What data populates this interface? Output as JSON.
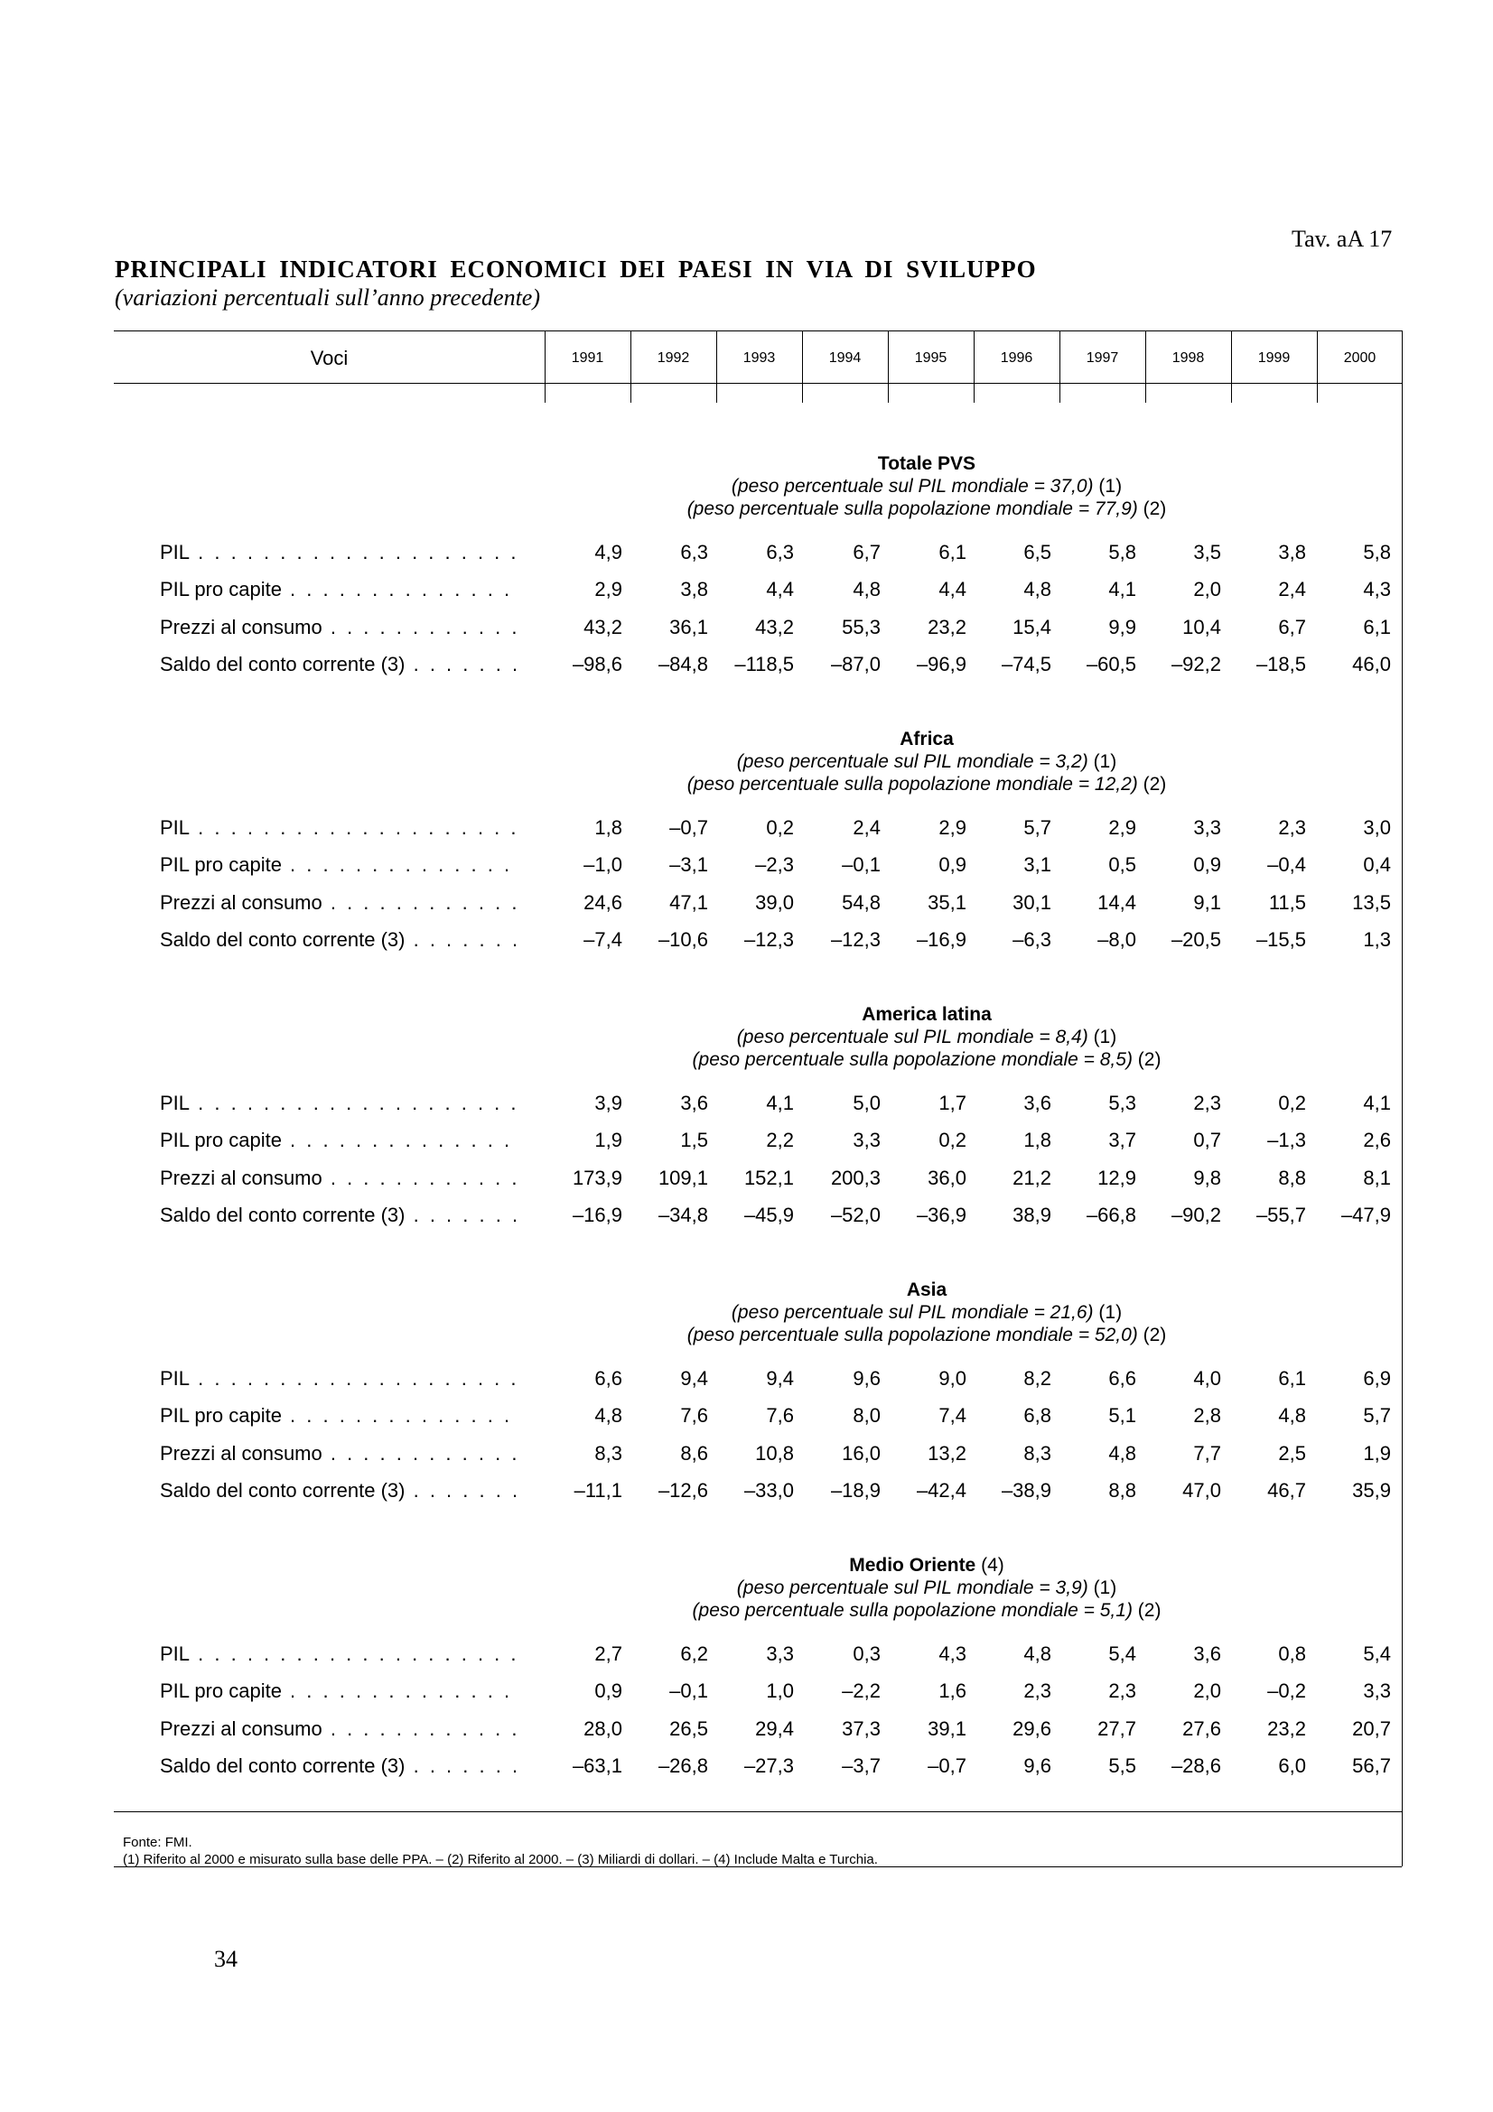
{
  "page": {
    "table_ref": "Tav. aA 17",
    "title": "PRINCIPALI INDICATORI ECONOMICI DEI PAESI IN VIA DI SVILUPPO",
    "subtitle": "(variazioni percentuali sull’anno precedente)",
    "page_number": "34"
  },
  "table": {
    "header_label": "Voci",
    "years": [
      "1991",
      "1992",
      "1993",
      "1994",
      "1995",
      "1996",
      "1997",
      "1998",
      "1999",
      "2000"
    ],
    "row_labels": [
      "PIL",
      "PIL pro capite",
      "Prezzi al consumo",
      "Saldo del conto corrente (3)"
    ],
    "sections": [
      {
        "name": "Totale PVS",
        "name_note": "",
        "weight_gdp_text": "(peso percentuale sul PIL mondiale = 37,0)",
        "weight_gdp_note": "(1)",
        "weight_pop_text": "(peso percentuale sulla popolazione mondiale = 77,9)",
        "weight_pop_note": "(2)",
        "rows": [
          [
            "4,9",
            "6,3",
            "6,3",
            "6,7",
            "6,1",
            "6,5",
            "5,8",
            "3,5",
            "3,8",
            "5,8"
          ],
          [
            "2,9",
            "3,8",
            "4,4",
            "4,8",
            "4,4",
            "4,8",
            "4,1",
            "2,0",
            "2,4",
            "4,3"
          ],
          [
            "43,2",
            "36,1",
            "43,2",
            "55,3",
            "23,2",
            "15,4",
            "9,9",
            "10,4",
            "6,7",
            "6,1"
          ],
          [
            "–98,6",
            "–84,8",
            "–118,5",
            "–87,0",
            "–96,9",
            "–74,5",
            "–60,5",
            "–92,2",
            "–18,5",
            "46,0"
          ]
        ]
      },
      {
        "name": "Africa",
        "name_note": "",
        "weight_gdp_text": "(peso percentuale sul PIL mondiale = 3,2)",
        "weight_gdp_note": "(1)",
        "weight_pop_text": "(peso percentuale sulla popolazione mondiale = 12,2)",
        "weight_pop_note": "(2)",
        "rows": [
          [
            "1,8",
            "–0,7",
            "0,2",
            "2,4",
            "2,9",
            "5,7",
            "2,9",
            "3,3",
            "2,3",
            "3,0"
          ],
          [
            "–1,0",
            "–3,1",
            "–2,3",
            "–0,1",
            "0,9",
            "3,1",
            "0,5",
            "0,9",
            "–0,4",
            "0,4"
          ],
          [
            "24,6",
            "47,1",
            "39,0",
            "54,8",
            "35,1",
            "30,1",
            "14,4",
            "9,1",
            "11,5",
            "13,5"
          ],
          [
            "–7,4",
            "–10,6",
            "–12,3",
            "–12,3",
            "–16,9",
            "–6,3",
            "–8,0",
            "–20,5",
            "–15,5",
            "1,3"
          ]
        ]
      },
      {
        "name": "America latina",
        "name_note": "",
        "weight_gdp_text": "(peso percentuale sul PIL mondiale = 8,4)",
        "weight_gdp_note": "(1)",
        "weight_pop_text": "(peso percentuale sulla popolazione mondiale = 8,5)",
        "weight_pop_note": "(2)",
        "rows": [
          [
            "3,9",
            "3,6",
            "4,1",
            "5,0",
            "1,7",
            "3,6",
            "5,3",
            "2,3",
            "0,2",
            "4,1"
          ],
          [
            "1,9",
            "1,5",
            "2,2",
            "3,3",
            "0,2",
            "1,8",
            "3,7",
            "0,7",
            "–1,3",
            "2,6"
          ],
          [
            "173,9",
            "109,1",
            "152,1",
            "200,3",
            "36,0",
            "21,2",
            "12,9",
            "9,8",
            "8,8",
            "8,1"
          ],
          [
            "–16,9",
            "–34,8",
            "–45,9",
            "–52,0",
            "–36,9",
            "38,9",
            "–66,8",
            "–90,2",
            "–55,7",
            "–47,9"
          ]
        ]
      },
      {
        "name": "Asia",
        "name_note": "",
        "weight_gdp_text": "(peso percentuale sul PIL mondiale = 21,6)",
        "weight_gdp_note": "(1)",
        "weight_pop_text": "(peso percentuale sulla popolazione mondiale = 52,0)",
        "weight_pop_note": "(2)",
        "rows": [
          [
            "6,6",
            "9,4",
            "9,4",
            "9,6",
            "9,0",
            "8,2",
            "6,6",
            "4,0",
            "6,1",
            "6,9"
          ],
          [
            "4,8",
            "7,6",
            "7,6",
            "8,0",
            "7,4",
            "6,8",
            "5,1",
            "2,8",
            "4,8",
            "5,7"
          ],
          [
            "8,3",
            "8,6",
            "10,8",
            "16,0",
            "13,2",
            "8,3",
            "4,8",
            "7,7",
            "2,5",
            "1,9"
          ],
          [
            "–11,1",
            "–12,6",
            "–33,0",
            "–18,9",
            "–42,4",
            "–38,9",
            "8,8",
            "47,0",
            "46,7",
            "35,9"
          ]
        ]
      },
      {
        "name": "Medio Oriente",
        "name_note": "(4)",
        "weight_gdp_text": "(peso percentuale sul PIL mondiale = 3,9)",
        "weight_gdp_note": "(1)",
        "weight_pop_text": "(peso percentuale sulla popolazione mondiale = 5,1)",
        "weight_pop_note": "(2)",
        "rows": [
          [
            "2,7",
            "6,2",
            "3,3",
            "0,3",
            "4,3",
            "4,8",
            "5,4",
            "3,6",
            "0,8",
            "5,4"
          ],
          [
            "0,9",
            "–0,1",
            "1,0",
            "–2,2",
            "1,6",
            "2,3",
            "2,3",
            "2,0",
            "–0,2",
            "3,3"
          ],
          [
            "28,0",
            "26,5",
            "29,4",
            "37,3",
            "39,1",
            "29,6",
            "27,7",
            "27,6",
            "23,2",
            "20,7"
          ],
          [
            "–63,1",
            "–26,8",
            "–27,3",
            "–3,7",
            "–0,7",
            "9,6",
            "5,5",
            "–28,6",
            "6,0",
            "56,7"
          ]
        ]
      }
    ]
  },
  "notes": {
    "source": "Fonte: FMI.",
    "footnotes": "(1) Riferito al 2000 e misurato sulla base delle PPA. – (2) Riferito al 2000. – (3) Miliardi di dollari. – (4) Include Malta e Turchia."
  }
}
